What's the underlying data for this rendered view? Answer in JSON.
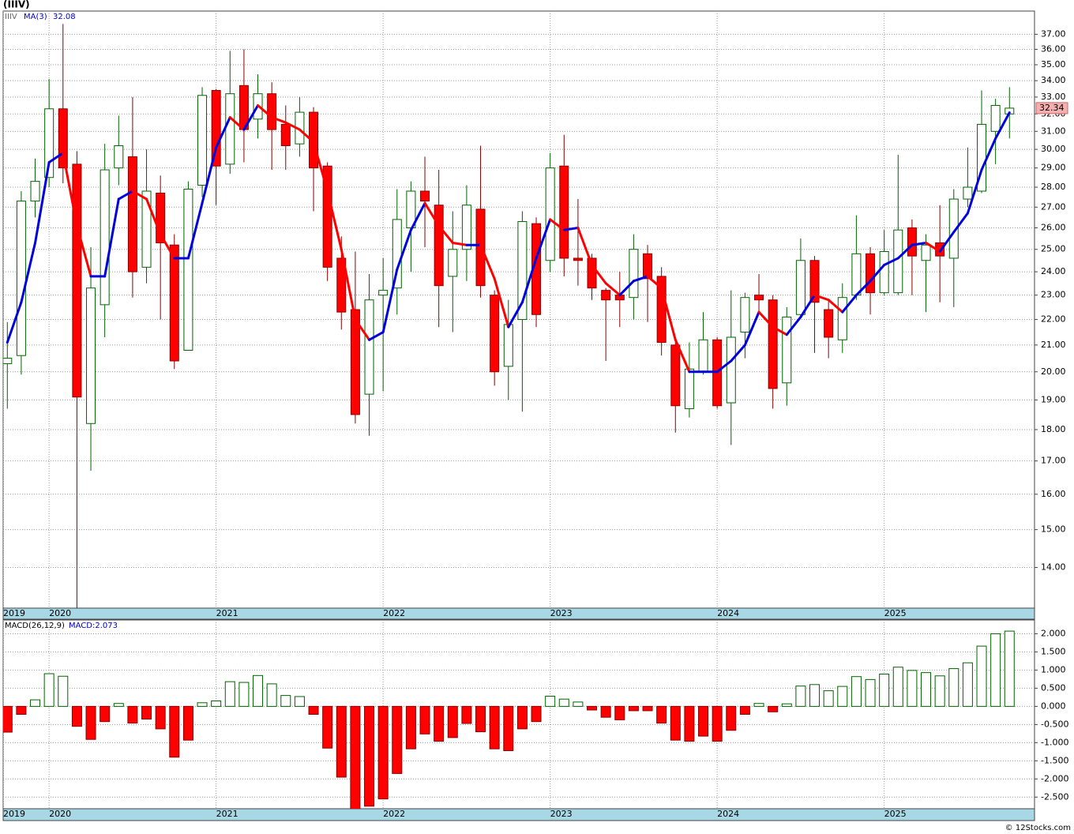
{
  "chart_data": {
    "type": "candlestick",
    "title": "(IIIV)",
    "symbol": "IIIV",
    "log": true,
    "grid": true,
    "up_color": "#006400",
    "down_color": "#ff0000",
    "open": [
      20.3,
      20.6,
      27.3,
      28.5,
      32.3,
      29.2,
      18.2,
      22.6,
      29.0,
      29.6,
      24.2,
      27.7,
      25.2,
      20.8,
      28.1,
      33.4,
      29.2,
      33.7,
      31.7,
      33.2,
      31.4,
      30.3,
      32.1,
      29.1,
      24.6,
      22.4,
      19.2,
      23.0,
      23.3,
      26.0,
      27.8,
      27.1,
      23.8,
      25.0,
      26.9,
      23.0,
      20.2,
      22.0,
      26.2,
      24.5,
      29.1,
      24.6,
      24.6,
      23.2,
      23.0,
      22.9,
      24.8,
      23.8,
      21.0,
      18.7,
      20.0,
      21.2,
      18.9,
      21.5,
      23.0,
      22.8,
      19.6,
      22.2,
      24.5,
      22.4,
      21.2,
      23.0,
      24.8,
      23.1,
      23.1,
      26.0,
      24.5,
      25.3,
      24.6,
      27.4,
      27.8,
      31.0,
      32.0
    ],
    "high": [
      21.9,
      27.8,
      29.5,
      34.1,
      37.7,
      29.9,
      25.1,
      30.3,
      31.9,
      33.0,
      30.0,
      28.6,
      25.7,
      28.3,
      33.6,
      33.5,
      35.9,
      36.0,
      34.4,
      33.9,
      32.5,
      33.0,
      32.4,
      29.3,
      25.6,
      24.9,
      23.9,
      24.6,
      27.9,
      28.3,
      29.6,
      28.9,
      26.8,
      28.1,
      30.2,
      23.2,
      22.8,
      26.8,
      26.5,
      29.8,
      30.8,
      27.4,
      24.8,
      23.3,
      24.0,
      25.7,
      25.2,
      24.2,
      21.3,
      21.1,
      22.3,
      21.3,
      23.2,
      23.1,
      23.9,
      23.0,
      22.5,
      25.5,
      24.7,
      22.8,
      23.5,
      26.6,
      25.1,
      25.9,
      29.7,
      26.4,
      25.7,
      27.1,
      27.9,
      30.1,
      33.4,
      32.9,
      33.6
    ],
    "low": [
      18.7,
      19.9,
      26.5,
      28.0,
      28.2,
      13.0,
      16.7,
      21.3,
      28.1,
      22.9,
      23.5,
      22.0,
      20.1,
      20.8,
      27.5,
      27.1,
      28.7,
      29.3,
      30.6,
      28.9,
      28.9,
      29.6,
      26.8,
      23.6,
      21.6,
      18.2,
      17.8,
      19.3,
      22.2,
      24.0,
      25.1,
      21.7,
      21.5,
      23.6,
      22.9,
      19.5,
      19.0,
      18.6,
      21.7,
      24.0,
      23.8,
      23.4,
      22.8,
      20.4,
      21.7,
      22.0,
      21.9,
      20.6,
      17.9,
      18.4,
      19.9,
      18.7,
      17.5,
      20.5,
      22.3,
      18.7,
      18.8,
      22.1,
      20.7,
      20.5,
      20.7,
      22.8,
      22.2,
      23.0,
      23.0,
      23.0,
      22.3,
      22.7,
      22.5,
      27.0,
      27.7,
      29.2,
      30.6
    ],
    "close": [
      20.5,
      27.3,
      28.3,
      32.3,
      29.0,
      19.1,
      23.3,
      28.9,
      30.2,
      24.0,
      27.8,
      25.3,
      20.4,
      27.9,
      33.1,
      29.1,
      33.2,
      31.1,
      33.2,
      31.1,
      30.2,
      32.1,
      29.0,
      24.2,
      22.3,
      18.5,
      22.8,
      23.2,
      26.4,
      27.8,
      27.3,
      23.4,
      25.0,
      27.1,
      23.4,
      20.0,
      21.8,
      26.3,
      22.2,
      29.0,
      24.6,
      24.5,
      23.3,
      22.8,
      22.8,
      25.0,
      23.7,
      21.1,
      18.8,
      20.1,
      21.2,
      18.8,
      21.3,
      22.9,
      22.8,
      19.4,
      22.1,
      24.5,
      22.7,
      21.3,
      22.9,
      24.8,
      23.1,
      24.9,
      25.9,
      24.7,
      25.2,
      24.7,
      27.4,
      28.0,
      31.4,
      32.5,
      32.34
    ],
    "ma": {
      "name": "MA(3)",
      "rise_color": "#0000dd",
      "fall_color": "#ff0000",
      "values": [
        21.1,
        22.7,
        25.3,
        29.3,
        29.8,
        26.1,
        23.8,
        23.8,
        27.4,
        27.8,
        27.4,
        25.7,
        24.6,
        24.6,
        27.2,
        30.1,
        31.8,
        31.1,
        32.5,
        31.8,
        31.5,
        31.1,
        30.4,
        27.8,
        25.0,
        22.0,
        21.2,
        21.5,
        24.1,
        25.9,
        27.2,
        26.1,
        25.3,
        25.2,
        25.2,
        23.7,
        21.7,
        22.7,
        24.6,
        26.4,
        25.9,
        26.0,
        24.3,
        23.5,
        23.0,
        23.6,
        23.8,
        23.3,
        21.2,
        20.0,
        20.0,
        20.0,
        20.4,
        21.0,
        22.3,
        21.7,
        21.4,
        22.1,
        23.0,
        22.8,
        22.3,
        23.0,
        23.6,
        24.3,
        24.6,
        25.2,
        25.3,
        24.9,
        25.8,
        26.7,
        28.9,
        30.6,
        32.08
      ]
    },
    "xlim": [
      -0.3,
      73.8
    ],
    "xticks": [
      {
        "value": -0.3,
        "label": "2019"
      },
      {
        "value": 3,
        "label": "2020"
      },
      {
        "value": 15,
        "label": "2021"
      },
      {
        "value": 27,
        "label": "2022"
      },
      {
        "value": 39,
        "label": "2023"
      },
      {
        "value": 51,
        "label": "2024"
      },
      {
        "value": 63,
        "label": "2025"
      }
    ],
    "ylim": [
      13.0,
      38.6
    ],
    "yticks": [
      {
        "value": 37,
        "label": "37.00"
      },
      {
        "value": 36,
        "label": "36.00"
      },
      {
        "value": 35,
        "label": "35.00"
      },
      {
        "value": 34,
        "label": "34.00"
      },
      {
        "value": 33,
        "label": "33.00"
      },
      {
        "value": 32,
        "label": "32.00"
      },
      {
        "value": 31,
        "label": "31.00"
      },
      {
        "value": 30,
        "label": "30.00"
      },
      {
        "value": 29,
        "label": "29.00"
      },
      {
        "value": 28,
        "label": "28.00"
      },
      {
        "value": 27,
        "label": "27.00"
      },
      {
        "value": 26,
        "label": "26.00"
      },
      {
        "value": 25,
        "label": "25.00"
      },
      {
        "value": 24,
        "label": "24.00"
      },
      {
        "value": 23,
        "label": "23.00"
      },
      {
        "value": 22,
        "label": "22.00"
      },
      {
        "value": 21,
        "label": "21.00"
      },
      {
        "value": 20,
        "label": "20.00"
      },
      {
        "value": 19,
        "label": "19.00"
      },
      {
        "value": 18,
        "label": "18.00"
      },
      {
        "value": 17,
        "label": "17.00"
      },
      {
        "value": 16,
        "label": "16.00"
      },
      {
        "value": 15,
        "label": "15.00"
      },
      {
        "value": 14,
        "label": "14.00"
      }
    ],
    "macd": {
      "name": "MACD(26,12,9)",
      "label": "MACD:2.073",
      "values": [
        -0.71,
        -0.22,
        0.18,
        0.9,
        0.83,
        -0.55,
        -0.91,
        -0.42,
        0.08,
        -0.46,
        -0.35,
        -0.62,
        -1.4,
        -0.93,
        0.1,
        0.15,
        0.68,
        0.66,
        0.85,
        0.62,
        0.3,
        0.27,
        -0.22,
        -1.15,
        -1.95,
        -2.85,
        -2.75,
        -2.55,
        -1.85,
        -1.17,
        -0.76,
        -0.96,
        -0.86,
        -0.47,
        -0.7,
        -1.17,
        -1.22,
        -0.62,
        -0.42,
        0.28,
        0.2,
        0.12,
        -0.1,
        -0.3,
        -0.37,
        -0.12,
        -0.12,
        -0.46,
        -0.93,
        -0.96,
        -0.82,
        -0.96,
        -0.66,
        -0.22,
        0.08,
        -0.15,
        0.07,
        0.56,
        0.6,
        0.43,
        0.55,
        0.82,
        0.74,
        0.89,
        1.08,
        0.99,
        0.93,
        0.84,
        1.04,
        1.2,
        1.66,
        2.0,
        2.073
      ],
      "ylim": [
        -2.82,
        2.38
      ],
      "yticks": [
        {
          "value": 2,
          "label": "2.000"
        },
        {
          "value": 1.5,
          "label": "1.500"
        },
        {
          "value": 1,
          "label": "1.000"
        },
        {
          "value": 0.5,
          "label": "0.500"
        },
        {
          "value": 0,
          "label": "0.000"
        },
        {
          "value": -0.5,
          "label": "-0.500"
        },
        {
          "value": -1,
          "label": "-1.000"
        },
        {
          "value": -1.5,
          "label": "-1.500"
        },
        {
          "value": -2,
          "label": "-2.000"
        },
        {
          "value": -2.5,
          "label": "-2.500"
        }
      ]
    },
    "copyright": "© 12Stocks.com"
  }
}
